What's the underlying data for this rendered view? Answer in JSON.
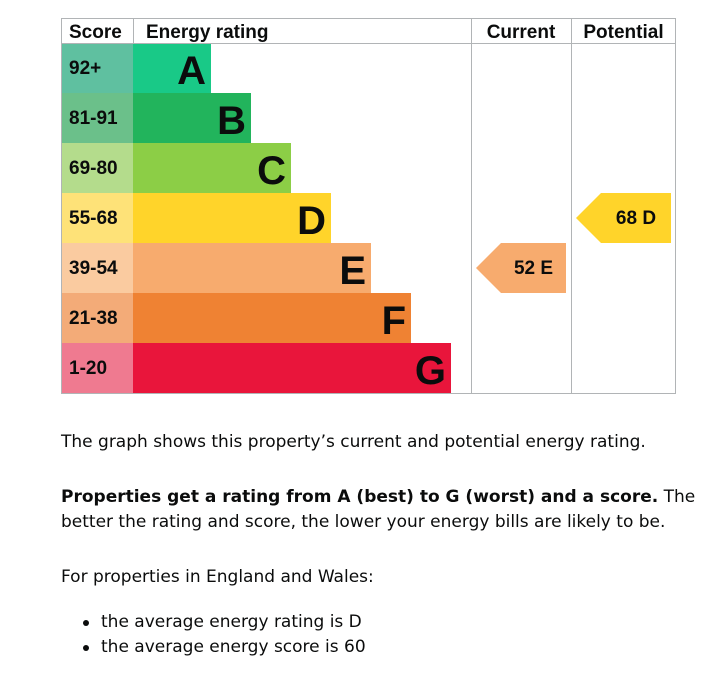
{
  "chart_data": {
    "type": "bar",
    "headers": {
      "score": "Score",
      "rating": "Energy rating",
      "current": "Current",
      "potential": "Potential"
    },
    "bands": [
      {
        "letter": "A",
        "range": "92+",
        "bar_color": "#19c987",
        "score_color": "#5fc0a0"
      },
      {
        "letter": "B",
        "range": "81-91",
        "bar_color": "#22b45c",
        "score_color": "#6bc08a"
      },
      {
        "letter": "C",
        "range": "69-80",
        "bar_color": "#8cce46",
        "score_color": "#b4dc8c"
      },
      {
        "letter": "D",
        "range": "55-68",
        "bar_color": "#ffd42a",
        "score_color": "#fee278"
      },
      {
        "letter": "E",
        "range": "39-54",
        "bar_color": "#f7ab6e",
        "score_color": "#facba0"
      },
      {
        "letter": "F",
        "range": "21-38",
        "bar_color": "#ef8233",
        "score_color": "#f3ab78"
      },
      {
        "letter": "G",
        "range": "1-20",
        "bar_color": "#e9153b",
        "score_color": "#ef7a90"
      }
    ],
    "current": {
      "score": 52,
      "letter": "E",
      "color": "#f7ab6e"
    },
    "potential": {
      "score": 68,
      "letter": "D",
      "color": "#ffd42a"
    }
  },
  "text": {
    "graph_desc": "The graph shows this property’s current and potential energy rating.",
    "rating_bold": "Properties get a rating from A (best) to G (worst) and a score.",
    "rating_rest": " The better the rating and score, the lower your energy bills are likely to be.",
    "regions": "For properties in England and Wales:",
    "averages": [
      "the average energy rating is D",
      "the average energy score is 60"
    ]
  }
}
